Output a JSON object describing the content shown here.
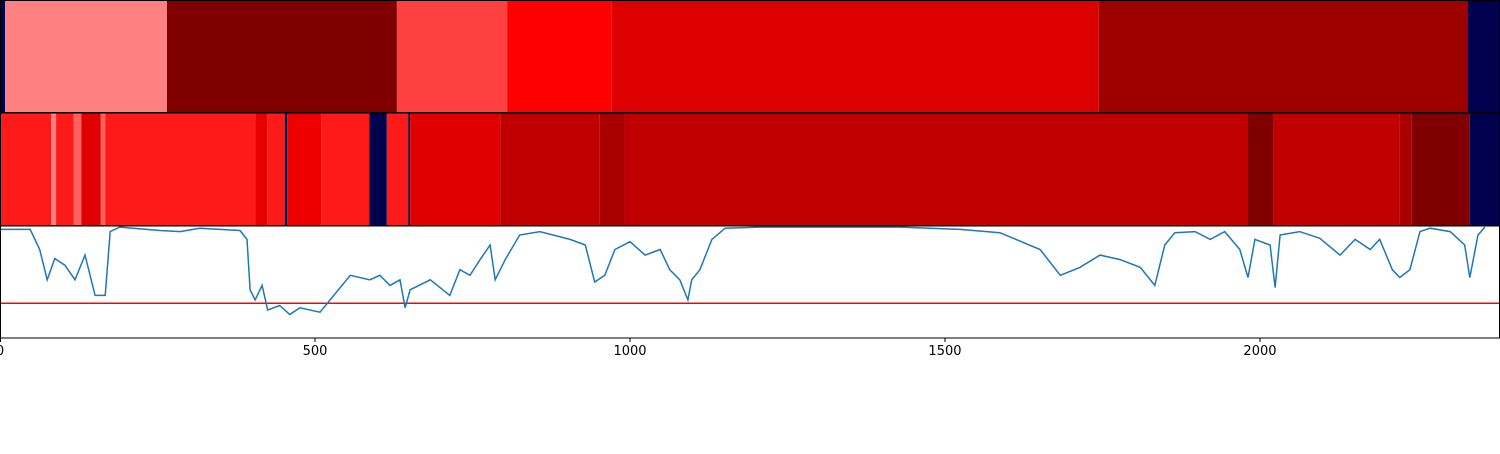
{
  "chart_data": {
    "type": "line",
    "xlim": [
      0,
      2381
    ],
    "xticks": [
      0,
      500,
      1000,
      1500,
      2000
    ],
    "ylim": [
      0,
      1
    ],
    "heatmaps": [
      {
        "edges": [
          0,
          8,
          265,
          630,
          805,
          971,
          1744,
          2329,
          2381
        ],
        "colors": [
          "#00004f",
          "#ff8080",
          "#800000",
          "#ff4040",
          "#ff0000",
          "#dd0000",
          "#9e0000",
          "#00004f"
        ]
      },
      {
        "edges": [
          0,
          81,
          89,
          117,
          129,
          160,
          167,
          405,
          424,
          452,
          456,
          510,
          586,
          614,
          648,
          651,
          794,
          952,
          992,
          1981,
          2022,
          2221,
          2241,
          2333,
          2381
        ],
        "colors": [
          "#ff1a1a",
          "#ff8080",
          "#ff1a1a",
          "#ff6060",
          "#e00000",
          "#ff6060",
          "#ff1a1a",
          "#e80000",
          "#ff1a1a",
          "#00004f",
          "#ee0000",
          "#ff1a1a",
          "#00004f",
          "#ff1a1a",
          "#00004f",
          "#e00000",
          "#c00000",
          "#a80000",
          "#c00000",
          "#800000",
          "#c00000",
          "#a80000",
          "#800000",
          "#00004f"
        ]
      }
    ],
    "x": [
      0,
      48,
      63,
      75,
      87,
      103,
      119,
      135,
      151,
      167,
      175,
      190,
      254,
      286,
      317,
      381,
      392,
      397,
      405,
      416,
      425,
      444,
      460,
      476,
      508,
      524,
      556,
      587,
      603,
      619,
      635,
      643,
      651,
      683,
      714,
      730,
      746,
      762,
      778,
      786,
      802,
      825,
      857,
      905,
      929,
      944,
      960,
      976,
      1000,
      1024,
      1048,
      1063,
      1079,
      1092,
      1098,
      1111,
      1130,
      1151,
      1206,
      1429,
      1524,
      1587,
      1651,
      1683,
      1714,
      1746,
      1778,
      1810,
      1833,
      1849,
      1865,
      1897,
      1921,
      1944,
      1968,
      1981,
      1992,
      2016,
      2024,
      2032,
      2063,
      2095,
      2127,
      2151,
      2175,
      2190,
      2210,
      2222,
      2238,
      2254,
      2270,
      2302,
      2325,
      2333,
      2346,
      2357
    ],
    "series": [
      {
        "color": "#1f77b4",
        "values": [
          0.97,
          0.97,
          0.79,
          0.52,
          0.71,
          0.65,
          0.52,
          0.74,
          0.38,
          0.38,
          0.95,
          0.99,
          0.96,
          0.95,
          0.98,
          0.96,
          0.88,
          0.43,
          0.34,
          0.47,
          0.25,
          0.29,
          0.21,
          0.27,
          0.23,
          0.34,
          0.56,
          0.52,
          0.56,
          0.47,
          0.52,
          0.27,
          0.43,
          0.52,
          0.38,
          0.61,
          0.56,
          0.7,
          0.83,
          0.52,
          0.7,
          0.92,
          0.95,
          0.88,
          0.83,
          0.5,
          0.56,
          0.79,
          0.86,
          0.74,
          0.79,
          0.61,
          0.52,
          0.34,
          0.52,
          0.61,
          0.88,
          0.98,
          0.99,
          0.99,
          0.97,
          0.94,
          0.79,
          0.56,
          0.63,
          0.74,
          0.7,
          0.63,
          0.47,
          0.83,
          0.94,
          0.95,
          0.88,
          0.95,
          0.79,
          0.54,
          0.88,
          0.83,
          0.45,
          0.92,
          0.95,
          0.89,
          0.74,
          0.88,
          0.79,
          0.88,
          0.61,
          0.54,
          0.61,
          0.95,
          0.98,
          0.95,
          0.83,
          0.54,
          0.92,
          0.99
        ]
      }
    ],
    "hline": {
      "value": 0.31,
      "color": "#ff0000"
    }
  }
}
